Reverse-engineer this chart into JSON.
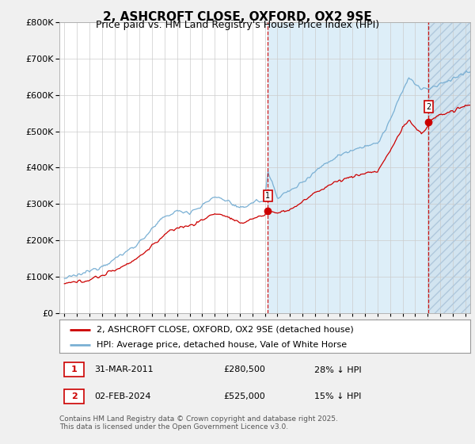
{
  "title": "2, ASHCROFT CLOSE, OXFORD, OX2 9SE",
  "subtitle": "Price paid vs. HM Land Registry's House Price Index (HPI)",
  "ylim": [
    0,
    800000
  ],
  "xlim_start": 1994.6,
  "xlim_end": 2027.4,
  "hpi_color": "#7ab0d4",
  "price_color": "#cc0000",
  "vline_color": "#cc0000",
  "shade_color": "#ddeef8",
  "marker1_x": 2011.25,
  "marker1_y": 280500,
  "marker1_label": "1",
  "marker1_date": "31-MAR-2011",
  "marker1_price": "£280,500",
  "marker1_hpi": "28% ↓ HPI",
  "marker2_x": 2024.08,
  "marker2_y": 525000,
  "marker2_label": "2",
  "marker2_date": "02-FEB-2024",
  "marker2_price": "£525,000",
  "marker2_hpi": "15% ↓ HPI",
  "legend_line1": "2, ASHCROFT CLOSE, OXFORD, OX2 9SE (detached house)",
  "legend_line2": "HPI: Average price, detached house, Vale of White Horse",
  "footnote": "Contains HM Land Registry data © Crown copyright and database right 2025.\nThis data is licensed under the Open Government Licence v3.0.",
  "bg_color": "#f0f0f0",
  "plot_bg": "#ffffff",
  "grid_color": "#cccccc",
  "title_fontsize": 11,
  "subtitle_fontsize": 9,
  "tick_fontsize": 8,
  "legend_fontsize": 8,
  "annot_fontsize": 8
}
